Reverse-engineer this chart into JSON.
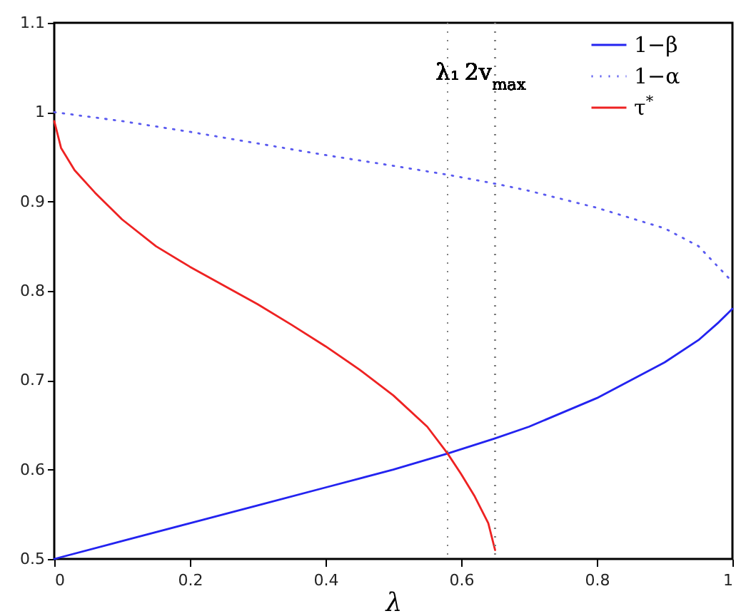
{
  "chart_data": {
    "type": "line",
    "xlabel": "λ",
    "xlim": [
      0,
      1
    ],
    "ylim": [
      0.5,
      1.1
    ],
    "xticks": [
      0,
      0.2,
      0.4,
      0.6,
      0.8,
      1
    ],
    "yticks": [
      0.5,
      0.6,
      0.7,
      0.8,
      0.9,
      1,
      1.1
    ],
    "grid": false,
    "legend": "top right",
    "series": [
      {
        "name": "1−β",
        "color": "#2323f0",
        "line_style": "solid",
        "x": [
          0,
          0.1,
          0.2,
          0.3,
          0.4,
          0.5,
          0.58,
          0.65,
          0.7,
          0.8,
          0.9,
          0.95,
          0.98,
          1
        ],
        "values": [
          0.5,
          0.52,
          0.54,
          0.56,
          0.58,
          0.6,
          0.618,
          0.635,
          0.648,
          0.68,
          0.72,
          0.745,
          0.765,
          0.78
        ]
      },
      {
        "name": "1−α",
        "color": "#5a5af0",
        "line_style": "dotted",
        "x": [
          0,
          0.1,
          0.2,
          0.3,
          0.4,
          0.5,
          0.58,
          0.65,
          0.7,
          0.8,
          0.9,
          0.95,
          1
        ],
        "values": [
          1,
          0.99,
          0.978,
          0.965,
          0.952,
          0.94,
          0.93,
          0.92,
          0.912,
          0.893,
          0.87,
          0.85,
          0.81
        ]
      },
      {
        "name": "τ$^{*}$",
        "color": "#ee2222",
        "line_style": "solid",
        "x": [
          0,
          0.01,
          0.03,
          0.06,
          0.1,
          0.15,
          0.2,
          0.25,
          0.3,
          0.35,
          0.4,
          0.45,
          0.5,
          0.55,
          0.58,
          0.6,
          0.62,
          0.64,
          0.65
        ],
        "values": [
          0.99,
          0.96,
          0.935,
          0.91,
          0.88,
          0.85,
          0.827,
          0.806,
          0.785,
          0.762,
          0.738,
          0.712,
          0.683,
          0.648,
          0.618,
          0.595,
          0.57,
          0.54,
          0.51
        ]
      }
    ],
    "ref_lines": [
      {
        "axis": "x",
        "value": 0.58,
        "label": "λ₁",
        "color": "#808080",
        "line_style": "dotted"
      },
      {
        "axis": "x",
        "value": 0.65,
        "label": "2v$_{max}$",
        "color": "#808080",
        "line_style": "dotted"
      }
    ]
  }
}
